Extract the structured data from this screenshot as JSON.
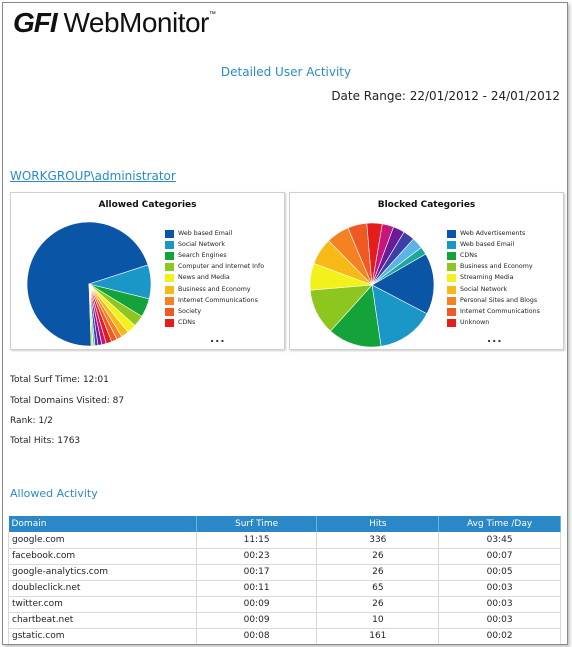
{
  "logo": {
    "brand": "GFI",
    "product": "WebMonitor",
    "mark": "™"
  },
  "report": {
    "title": "Detailed User Activity",
    "date_range": "Date Range: 22/01/2012 - 24/01/2012"
  },
  "user": {
    "name": "WORKGROUP\\administrator"
  },
  "chart_data": [
    {
      "type": "pie",
      "title": "Allowed Categories",
      "legend_position": "right",
      "more_indicator": "...",
      "slices": [
        {
          "label": "Web based Email",
          "value": 72.0,
          "color": "#0a55a6"
        },
        {
          "label": "Social Network",
          "value": 9.0,
          "color": "#1a97c6"
        },
        {
          "label": "Search Engines",
          "value": 5.0,
          "color": "#14a23a"
        },
        {
          "label": "Computer and Internet Info",
          "value": 3.0,
          "color": "#8cc61e"
        },
        {
          "label": "News and Media",
          "value": 2.5,
          "color": "#f2f21a"
        },
        {
          "label": "Business and Economy",
          "value": 2.0,
          "color": "#f7b916"
        },
        {
          "label": "Internet Communications",
          "value": 1.5,
          "color": "#f58220"
        },
        {
          "label": "Society",
          "value": 1.5,
          "color": "#ef5a24"
        },
        {
          "label": "CDNs",
          "value": 1.5,
          "color": "#e41c1c"
        },
        {
          "label": "",
          "value": 1.2,
          "color": "#c7167a"
        },
        {
          "label": "",
          "value": 1.0,
          "color": "#6a1b9a"
        },
        {
          "label": "",
          "value": 0.8,
          "color": "#3b3fa6"
        },
        {
          "label": "",
          "value": 0.5,
          "color": "#5ab4e6"
        },
        {
          "label": "",
          "value": 0.5,
          "color": "#d4e82c"
        }
      ]
    },
    {
      "type": "pie",
      "title": "Blocked Categories",
      "legend_position": "right",
      "more_indicator": "...",
      "slices": [
        {
          "label": "Web Advertisements",
          "value": 16.0,
          "color": "#0a55a6"
        },
        {
          "label": "Web based Email",
          "value": 15.0,
          "color": "#1a97c6"
        },
        {
          "label": "CDNs",
          "value": 14.0,
          "color": "#14a23a"
        },
        {
          "label": "Business and Economy",
          "value": 12.0,
          "color": "#8cc61e"
        },
        {
          "label": "Streaming Media",
          "value": 7.0,
          "color": "#f2f21a"
        },
        {
          "label": "Social Network",
          "value": 7.0,
          "color": "#f7b916"
        },
        {
          "label": "Personal Sites and Blogs",
          "value": 6.0,
          "color": "#f58220"
        },
        {
          "label": "Internet Communications",
          "value": 5.0,
          "color": "#ef5a24"
        },
        {
          "label": "Unknown",
          "value": 4.0,
          "color": "#e41c1c"
        },
        {
          "label": "",
          "value": 3.0,
          "color": "#c7167a"
        },
        {
          "label": "",
          "value": 3.0,
          "color": "#6a1b9a"
        },
        {
          "label": "",
          "value": 3.0,
          "color": "#3b3fa6"
        },
        {
          "label": "",
          "value": 3.0,
          "color": "#5ab4e6"
        },
        {
          "label": "",
          "value": 2.0,
          "color": "#1aa89a"
        }
      ]
    }
  ],
  "stats": {
    "surf_time": "Total Surf Time: 12:01",
    "domains_visited": "Total Domains Visited: 87",
    "rank": "Rank: 1/2",
    "hits": "Total Hits: 1763"
  },
  "allowed_activity": {
    "title": "Allowed Activity",
    "columns": [
      "Domain",
      "Surf Time",
      "Hits",
      "Avg Time  /Day"
    ],
    "rows": [
      [
        "google.com",
        "11:15",
        "336",
        "03:45"
      ],
      [
        "facebook.com",
        "00:23",
        "26",
        "00:07"
      ],
      [
        "google-analytics.com",
        "00:17",
        "26",
        "00:05"
      ],
      [
        "doubleclick.net",
        "00:11",
        "65",
        "00:03"
      ],
      [
        "twitter.com",
        "00:09",
        "26",
        "00:03"
      ],
      [
        "chartbeat.net",
        "00:09",
        "10",
        "00:03"
      ],
      [
        "gstatic.com",
        "00:08",
        "161",
        "00:02"
      ]
    ]
  }
}
